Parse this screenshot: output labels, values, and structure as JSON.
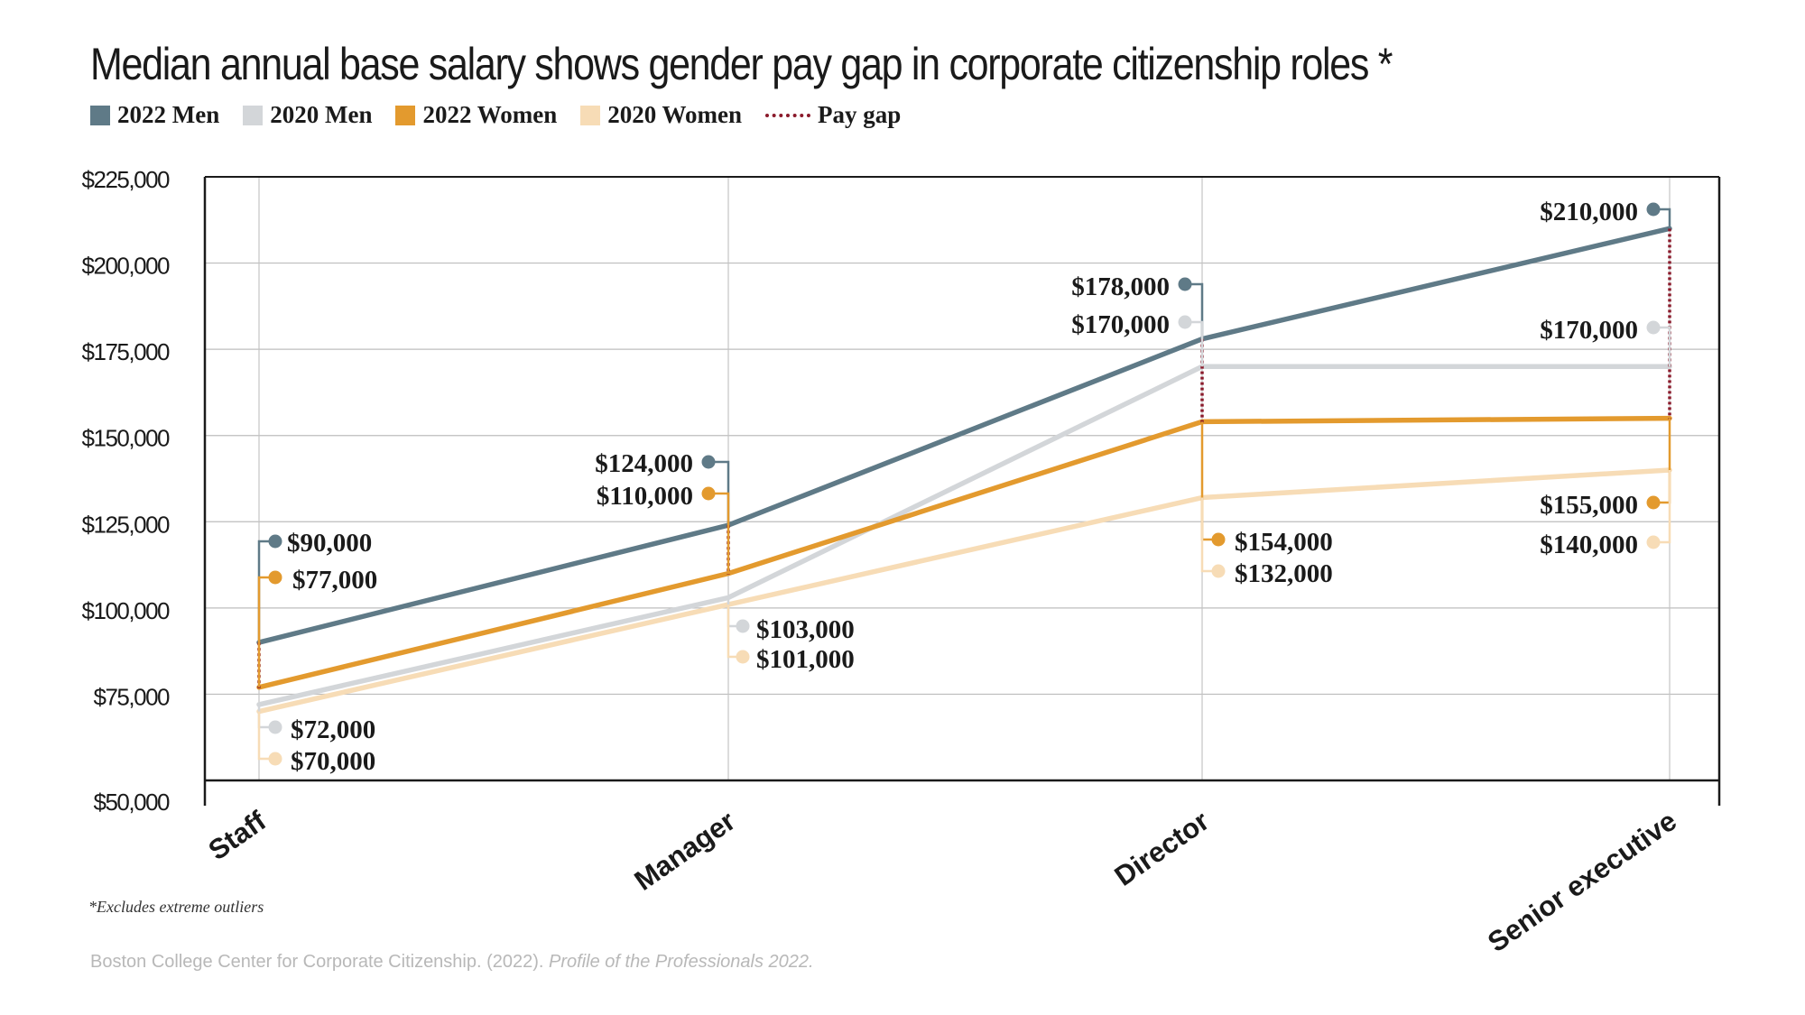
{
  "title": "Median annual base salary shows gender pay gap in corporate citizenship roles *",
  "legend": [
    {
      "label": "2022 Men",
      "color": "#5f7a87"
    },
    {
      "label": "2020 Men",
      "color": "#d3d6d9"
    },
    {
      "label": "2022 Women",
      "color": "#e39a2e"
    },
    {
      "label": "2020 Women",
      "color": "#f7dcb6"
    },
    {
      "label": "Pay gap",
      "color": "#8b1a2b"
    }
  ],
  "chart_data": {
    "type": "line",
    "categories": [
      "Staff",
      "Manager",
      "Director",
      "Senior executive"
    ],
    "ylim": [
      50000,
      225000
    ],
    "yticks": [
      "$50,000",
      "$75,000",
      "$100,000",
      "$125,000",
      "$150,000",
      "$175,000",
      "$200,000",
      "$225,000"
    ],
    "ytick_values": [
      50000,
      75000,
      100000,
      125000,
      150000,
      175000,
      200000,
      225000
    ],
    "grid": true,
    "series": [
      {
        "name": "2022 Men",
        "color": "#5f7a87",
        "values": [
          90000,
          124000,
          178000,
          210000
        ],
        "labels": [
          "$90,000",
          "$124,000",
          "$178,000",
          "$210,000"
        ]
      },
      {
        "name": "2020 Men",
        "color": "#d3d6d9",
        "values": [
          72000,
          103000,
          170000,
          170000
        ],
        "labels": [
          "$72,000",
          "$103,000",
          "$170,000",
          "$170,000"
        ]
      },
      {
        "name": "2022 Women",
        "color": "#e39a2e",
        "values": [
          77000,
          110000,
          154000,
          155000
        ],
        "labels": [
          "$77,000",
          "$110,000",
          "$154,000",
          "$155,000"
        ]
      },
      {
        "name": "2020 Women",
        "color": "#f7dcb6",
        "values": [
          70000,
          101000,
          132000,
          140000
        ],
        "labels": [
          "$70,000",
          "$101,000",
          "$132,000",
          "$140,000"
        ]
      }
    ],
    "pay_gap_color": "#8b1a2b"
  },
  "footnote": "*Excludes extreme outliers",
  "source": {
    "text": "Boston College Center for Corporate Citizenship. (2022). ",
    "italic": "Profile of the Professionals 2022."
  }
}
